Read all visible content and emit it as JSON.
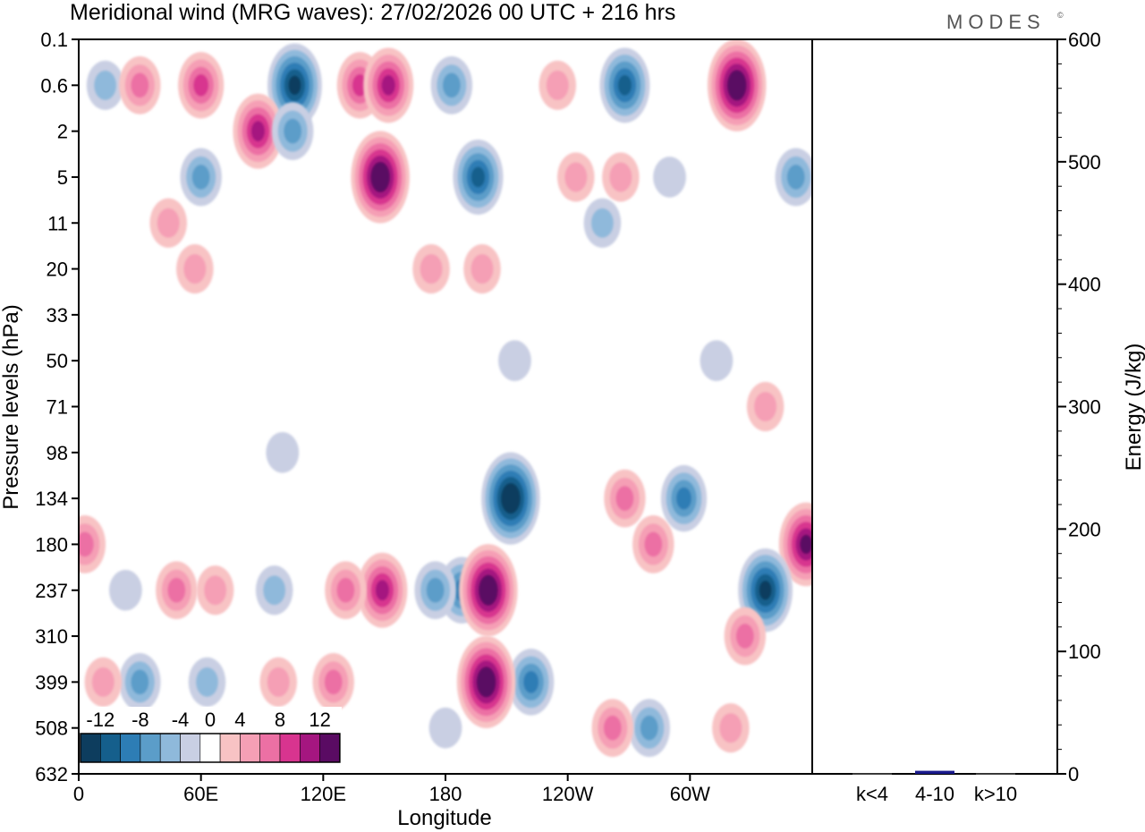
{
  "chart_data": {
    "type": "heatmap",
    "title": "Meridional wind (MRG waves):  27/02/2026  00 UTC  + 216 hrs",
    "brand": "MODES",
    "brand_mark": "©",
    "xlabel": "Longitude",
    "ylabel": "Pressure levels (hPa)",
    "x_ticks": [
      "0",
      "60E",
      "120E",
      "180",
      "120W",
      "60W"
    ],
    "x_tick_degrees": [
      0,
      60,
      120,
      180,
      240,
      300
    ],
    "xlim": [
      0,
      360
    ],
    "y_ticks": [
      "0.1",
      "0.6",
      "2",
      "5",
      "11",
      "20",
      "33",
      "50",
      "71",
      "98",
      "134",
      "180",
      "237",
      "310",
      "399",
      "508",
      "632"
    ],
    "colorbar": {
      "labels": [
        "-12",
        "-8",
        "-4",
        "0",
        "4",
        "8",
        "12"
      ],
      "levels": [
        -14,
        -12,
        -10,
        -8,
        -6,
        -4,
        -2,
        2,
        4,
        6,
        8,
        10,
        12,
        14
      ],
      "colors": [
        "#0d3d5e",
        "#155f8c",
        "#2d7db5",
        "#5b9dc9",
        "#8fb9db",
        "#c9cfe3",
        "#ffffff",
        "#f8c3c4",
        "#f59fb5",
        "#ec70a4",
        "#d8348f",
        "#a51680",
        "#5a0b63"
      ]
    },
    "contour_blobs": [
      {
        "lon": 13,
        "level": 0.6,
        "value": -4
      },
      {
        "lon": 30,
        "level": 0.6,
        "value": 6
      },
      {
        "lon": 60,
        "level": 0.6,
        "value": 8
      },
      {
        "lon": 106,
        "level": 0.6,
        "value": -12
      },
      {
        "lon": 138,
        "level": 0.6,
        "value": 8
      },
      {
        "lon": 152,
        "level": 0.6,
        "value": 10
      },
      {
        "lon": 183,
        "level": 0.6,
        "value": -6
      },
      {
        "lon": 235,
        "level": 0.6,
        "value": 4
      },
      {
        "lon": 268,
        "level": 0.6,
        "value": -10
      },
      {
        "lon": 323,
        "level": 0.6,
        "value": 14
      },
      {
        "lon": 88,
        "level": 2,
        "value": 10
      },
      {
        "lon": 105,
        "level": 2,
        "value": -6
      },
      {
        "lon": 148,
        "level": 5,
        "value": 14
      },
      {
        "lon": 196,
        "level": 5,
        "value": -10
      },
      {
        "lon": 244,
        "level": 5,
        "value": 4
      },
      {
        "lon": 266,
        "level": 5,
        "value": 4
      },
      {
        "lon": 290,
        "level": 5,
        "value": -2
      },
      {
        "lon": 352,
        "level": 5,
        "value": -6
      },
      {
        "lon": 60,
        "level": 5,
        "value": -6
      },
      {
        "lon": 44,
        "level": 11,
        "value": 4
      },
      {
        "lon": 257,
        "level": 11,
        "value": -4
      },
      {
        "lon": 173,
        "level": 20,
        "value": 4
      },
      {
        "lon": 198,
        "level": 20,
        "value": 4
      },
      {
        "lon": 57,
        "level": 20,
        "value": 4
      },
      {
        "lon": 214,
        "level": 50,
        "value": -2
      },
      {
        "lon": 313,
        "level": 50,
        "value": -2
      },
      {
        "lon": 337,
        "level": 71,
        "value": 4
      },
      {
        "lon": 100,
        "level": 98,
        "value": -2
      },
      {
        "lon": 212,
        "level": 134,
        "value": -14
      },
      {
        "lon": 297,
        "level": 134,
        "value": -8
      },
      {
        "lon": 357,
        "level": 180,
        "value": 12
      },
      {
        "lon": 268,
        "level": 134,
        "value": 6
      },
      {
        "lon": 282,
        "level": 180,
        "value": 6
      },
      {
        "lon": 337,
        "level": 237,
        "value": -12
      },
      {
        "lon": 188,
        "level": 237,
        "value": -8
      },
      {
        "lon": 175,
        "level": 237,
        "value": -6
      },
      {
        "lon": 201,
        "level": 237,
        "value": 14
      },
      {
        "lon": 149,
        "level": 237,
        "value": 10
      },
      {
        "lon": 131,
        "level": 237,
        "value": 6
      },
      {
        "lon": 96,
        "level": 237,
        "value": -4
      },
      {
        "lon": 67,
        "level": 237,
        "value": 4
      },
      {
        "lon": 48,
        "level": 237,
        "value": 6
      },
      {
        "lon": 3,
        "level": 180,
        "value": 6
      },
      {
        "lon": 23,
        "level": 237,
        "value": -2
      },
      {
        "lon": 30,
        "level": 399,
        "value": -6
      },
      {
        "lon": 63,
        "level": 399,
        "value": -4
      },
      {
        "lon": 98,
        "level": 399,
        "value": 4
      },
      {
        "lon": 125,
        "level": 399,
        "value": 6
      },
      {
        "lon": 222,
        "level": 399,
        "value": -8
      },
      {
        "lon": 200,
        "level": 399,
        "value": 14
      },
      {
        "lon": 327,
        "level": 310,
        "value": 6
      },
      {
        "lon": 280,
        "level": 508,
        "value": -6
      },
      {
        "lon": 262,
        "level": 508,
        "value": 6
      },
      {
        "lon": 320,
        "level": 508,
        "value": 4
      },
      {
        "lon": 12,
        "level": 399,
        "value": 4
      },
      {
        "lon": 180,
        "level": 508,
        "value": -2
      }
    ]
  },
  "energy_panel": {
    "ylabel": "Energy (J/kg)",
    "ylim": [
      0,
      600
    ],
    "y_ticks": [
      "0",
      "100",
      "200",
      "300",
      "400",
      "500",
      "600"
    ],
    "y_tick_values": [
      0,
      100,
      200,
      300,
      400,
      500,
      600
    ],
    "categories": [
      "k<4",
      "4-10",
      "k>10"
    ],
    "values": [
      0.3,
      2.5,
      0.3
    ],
    "bar_color": "#1a1a8c"
  }
}
